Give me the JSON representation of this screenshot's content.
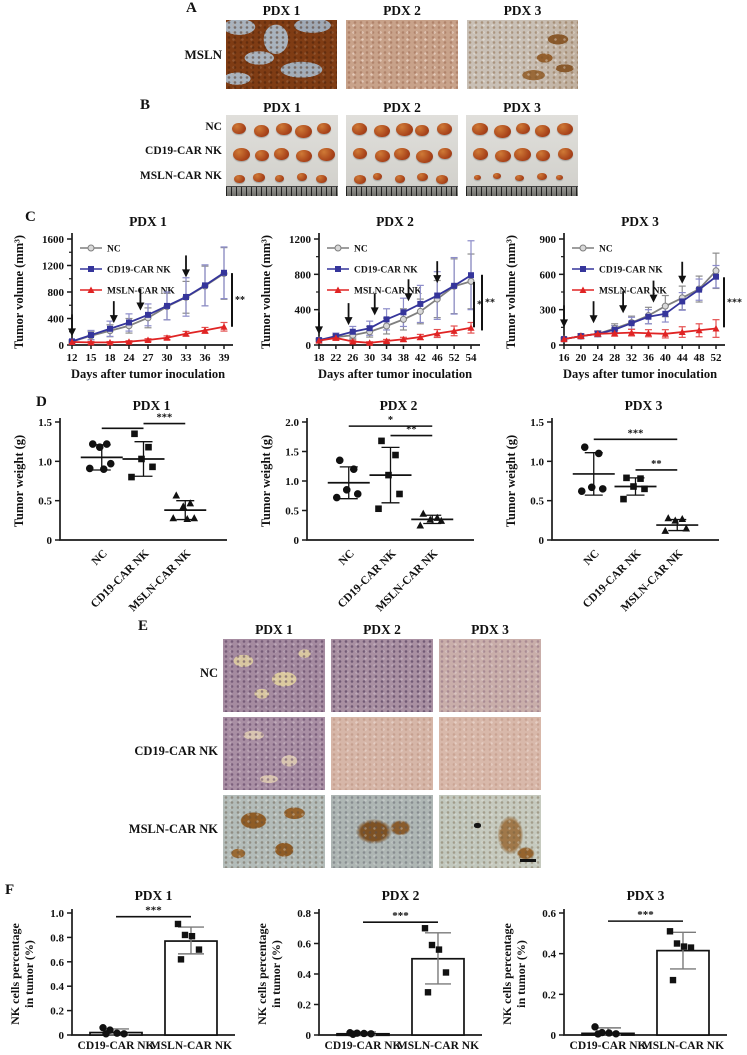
{
  "panels": {
    "A": {
      "label": "A",
      "columns": [
        "PDX 1",
        "PDX 2",
        "PDX 3"
      ],
      "row_label": "MSLN"
    },
    "B": {
      "label": "B",
      "columns": [
        "PDX 1",
        "PDX 2",
        "PDX 3"
      ],
      "row_labels": [
        "NC",
        "CD19-CAR NK",
        "MSLN-CAR NK"
      ]
    },
    "C": {
      "label": "C"
    },
    "D": {
      "label": "D"
    },
    "E": {
      "label": "E",
      "columns": [
        "PDX 1",
        "PDX 2",
        "PDX 3"
      ],
      "row_labels": [
        "NC",
        "CD19-CAR NK",
        "MSLN-CAR NK"
      ]
    },
    "F": {
      "label": "F"
    }
  },
  "colors": {
    "nc": "#7f7f7f",
    "cd19": "#35359b",
    "cd19_err": "#8c8cc9",
    "msln": "#e02424",
    "axis": "#1a1a1a"
  },
  "chart_data": [
    {
      "id": "C1",
      "panel": "C",
      "type": "line",
      "title": "PDX 1",
      "xlabel": "Days after tumor inoculation",
      "ylabel": "Tumor volume (mm³)",
      "x": [
        12,
        15,
        18,
        24,
        27,
        30,
        33,
        36,
        39
      ],
      "ylim": [
        0,
        1600
      ],
      "yticks": [
        "0",
        "400",
        "800",
        "1200",
        "1600"
      ],
      "legend_position": "top-left",
      "grid": false,
      "series": [
        {
          "name": "NC",
          "color": "#7f7f7f",
          "err_color": "#8c8c8c",
          "marker": "circle",
          "open": true,
          "values": [
            50,
            140,
            215,
            290,
            410,
            580,
            720,
            890,
            1080
          ],
          "err": [
            25,
            60,
            90,
            110,
            150,
            200,
            240,
            300,
            390
          ]
        },
        {
          "name": "CD19-CAR NK",
          "color": "#35359b",
          "err_color": "#8c8cc9",
          "marker": "square",
          "values": [
            55,
            150,
            245,
            340,
            455,
            590,
            725,
            900,
            1090
          ],
          "err": [
            25,
            70,
            115,
            130,
            165,
            210,
            290,
            310,
            390
          ]
        },
        {
          "name": "MSLN-CAR NK",
          "color": "#e02424",
          "err_color": "#e45050",
          "marker": "triangle",
          "values": [
            45,
            40,
            40,
            50,
            75,
            110,
            170,
            220,
            275
          ],
          "err": [
            12,
            12,
            12,
            15,
            20,
            28,
            35,
            45,
            65
          ]
        }
      ],
      "arrows": [
        {
          "xi": 0,
          "y": 130
        },
        {
          "xi": 2.2,
          "y": 330
        },
        {
          "xi": 3.6,
          "y": 520
        },
        {
          "xi": 6,
          "y": 1020
        }
      ],
      "sig": [
        {
          "dx": 8,
          "y1": 1085,
          "y2": 275,
          "label": "**"
        }
      ]
    },
    {
      "id": "C2",
      "panel": "C",
      "type": "line",
      "title": "PDX 2",
      "xlabel": "Days after tumor inoculation",
      "ylabel": "Tumor volume (mm³)",
      "x": [
        18,
        22,
        26,
        30,
        34,
        38,
        42,
        46,
        52,
        54
      ],
      "ylim": [
        0,
        1200
      ],
      "yticks": [
        "0",
        "400",
        "800",
        "1200"
      ],
      "legend_position": "top-left",
      "grid": false,
      "series": [
        {
          "name": "NC",
          "color": "#7f7f7f",
          "err_color": "#8c8c8c",
          "marker": "circle",
          "open": true,
          "values": [
            55,
            90,
            110,
            150,
            215,
            290,
            380,
            520,
            665,
            720
          ],
          "err": [
            20,
            30,
            40,
            60,
            90,
            120,
            140,
            210,
            310,
            310
          ]
        },
        {
          "name": "CD19-CAR NK",
          "color": "#35359b",
          "err_color": "#8c8cc9",
          "marker": "square",
          "values": [
            55,
            100,
            150,
            190,
            290,
            370,
            465,
            560,
            670,
            790
          ],
          "err": [
            20,
            35,
            60,
            80,
            120,
            160,
            210,
            270,
            320,
            390
          ]
        },
        {
          "name": "MSLN-CAR NK",
          "color": "#e02424",
          "err_color": "#e45050",
          "marker": "triangle",
          "values": [
            50,
            80,
            40,
            25,
            45,
            65,
            90,
            130,
            160,
            195
          ],
          "err": [
            15,
            25,
            15,
            12,
            18,
            22,
            30,
            45,
            55,
            60
          ]
        }
      ],
      "arrows": [
        {
          "xi": 0,
          "y": 120
        },
        {
          "xi": 1.75,
          "y": 225
        },
        {
          "xi": 3.3,
          "y": 335
        },
        {
          "xi": 5.3,
          "y": 495
        },
        {
          "xi": 7,
          "y": 700
        }
      ],
      "sig": [
        {
          "dx": 3,
          "y1": 715,
          "y2": 200,
          "label": "*"
        },
        {
          "dx": 11,
          "y1": 795,
          "y2": 165,
          "label": "**"
        }
      ]
    },
    {
      "id": "C3",
      "panel": "C",
      "type": "line",
      "title": "PDX 3",
      "xlabel": "Days after tumor inoculation",
      "ylabel": "Tumor volume (mm³)",
      "x": [
        16,
        20,
        24,
        28,
        32,
        36,
        40,
        44,
        48,
        52
      ],
      "ylim": [
        0,
        900
      ],
      "yticks": [
        "0",
        "300",
        "600",
        "900"
      ],
      "legend_position": "top-left",
      "grid": false,
      "series": [
        {
          "name": "NC",
          "color": "#7f7f7f",
          "err_color": "#8c8c8c",
          "marker": "circle",
          "open": true,
          "values": [
            50,
            75,
            95,
            140,
            190,
            250,
            330,
            400,
            475,
            630
          ],
          "err": [
            15,
            20,
            25,
            40,
            55,
            70,
            90,
            100,
            110,
            150
          ]
        },
        {
          "name": "CD19-CAR NK",
          "color": "#35359b",
          "err_color": "#8c8cc9",
          "marker": "square",
          "values": [
            50,
            75,
            95,
            130,
            185,
            240,
            265,
            370,
            470,
            580
          ],
          "err": [
            15,
            20,
            25,
            35,
            50,
            60,
            70,
            75,
            90,
            95
          ]
        },
        {
          "name": "MSLN-CAR NK",
          "color": "#e02424",
          "err_color": "#e45050",
          "marker": "triangle",
          "values": [
            50,
            75,
            95,
            100,
            105,
            100,
            95,
            110,
            125,
            140
          ],
          "err": [
            12,
            18,
            20,
            25,
            28,
            30,
            35,
            45,
            55,
            75
          ]
        }
      ],
      "arrows": [
        {
          "xi": 0,
          "y": 150
        },
        {
          "xi": 1.75,
          "y": 185
        },
        {
          "xi": 3.5,
          "y": 270
        },
        {
          "xi": 5.3,
          "y": 360
        },
        {
          "xi": 7,
          "y": 520
        }
      ],
      "sig": [
        {
          "dx": 8,
          "y1": 575,
          "y2": 150,
          "label": "***"
        }
      ]
    },
    {
      "id": "D1",
      "panel": "D",
      "type": "scatter",
      "title": "PDX 1",
      "ylabel": "Tumor weight (g)",
      "categories": [
        "NC",
        "CD19-CAR NK",
        "MSLN-CAR NK"
      ],
      "ylim": [
        0,
        1.5
      ],
      "yticks": [
        "0",
        "0.5",
        "1.0",
        "1.5"
      ],
      "groups": [
        {
          "name": "NC",
          "marker": "circle",
          "points": [
            1.22,
            1.22,
            1.18,
            0.97,
            0.91,
            0.9
          ],
          "mean": 1.05,
          "sd": 0.16
        },
        {
          "name": "CD19-CAR NK",
          "marker": "square",
          "points": [
            1.35,
            1.18,
            1.03,
            0.93,
            0.8
          ],
          "mean": 1.03,
          "sd": 0.22
        },
        {
          "name": "MSLN-CAR NK",
          "marker": "triangle",
          "points": [
            0.57,
            0.47,
            0.43,
            0.28,
            0.28,
            0.27
          ],
          "mean": 0.38,
          "sd": 0.12
        }
      ],
      "sig": [
        {
          "x1": 0,
          "x2": 1,
          "y": 1.42,
          "label": ""
        },
        {
          "x1": 1,
          "x2": 2,
          "y": 1.48,
          "label": "***"
        }
      ]
    },
    {
      "id": "D2",
      "panel": "D",
      "type": "scatter",
      "title": "PDX 2",
      "ylabel": "Tumor weight (g)",
      "categories": [
        "NC",
        "CD19-CAR NK",
        "MSLN-CAR NK"
      ],
      "ylim": [
        0,
        2
      ],
      "yticks": [
        "0",
        "0.5",
        "1.0",
        "1.5",
        "2.0"
      ],
      "groups": [
        {
          "name": "NC",
          "marker": "circle",
          "points": [
            1.35,
            1.2,
            0.85,
            0.78,
            0.72
          ],
          "mean": 0.97,
          "sd": 0.27
        },
        {
          "name": "CD19-CAR NK",
          "marker": "square",
          "points": [
            1.68,
            1.44,
            1.1,
            0.78,
            0.53
          ],
          "mean": 1.1,
          "sd": 0.47
        },
        {
          "name": "MSLN-CAR NK",
          "marker": "triangle",
          "points": [
            0.45,
            0.38,
            0.35,
            0.33,
            0.25
          ],
          "mean": 0.35,
          "sd": 0.07
        }
      ],
      "sig": [
        {
          "x1": 0,
          "x2": 2,
          "y": 1.93,
          "label": "*"
        },
        {
          "x1": 1,
          "x2": 2,
          "y": 1.77,
          "label": "**"
        }
      ]
    },
    {
      "id": "D3",
      "panel": "D",
      "type": "scatter",
      "title": "PDX 3",
      "ylabel": "Tumor weight (g)",
      "categories": [
        "NC",
        "CD19-CAR NK",
        "MSLN-CAR NK"
      ],
      "ylim": [
        0,
        1.5
      ],
      "yticks": [
        "0",
        "0.5",
        "1.0",
        "1.5"
      ],
      "groups": [
        {
          "name": "NC",
          "marker": "circle",
          "points": [
            1.18,
            1.1,
            0.67,
            0.65,
            0.62
          ],
          "mean": 0.84,
          "sd": 0.27
        },
        {
          "name": "CD19-CAR NK",
          "marker": "square",
          "points": [
            0.79,
            0.78,
            0.68,
            0.65,
            0.52
          ],
          "mean": 0.68,
          "sd": 0.11
        },
        {
          "name": "MSLN-CAR NK",
          "marker": "triangle",
          "points": [
            0.28,
            0.27,
            0.25,
            0.15,
            0.12
          ],
          "mean": 0.19,
          "sd": 0.07
        }
      ],
      "sig": [
        {
          "x1": 0,
          "x2": 2,
          "y": 1.28,
          "label": "***"
        },
        {
          "x1": 1,
          "x2": 2,
          "y": 0.89,
          "label": "**"
        }
      ]
    },
    {
      "id": "F1",
      "panel": "F",
      "type": "bar",
      "title": "PDX 1",
      "ylabel_lines": [
        "NK cells percentage",
        "in tumor (%)"
      ],
      "categories": [
        "CD19-CAR NK",
        "MSLN-CAR NK"
      ],
      "ylim": [
        0,
        1
      ],
      "yticks": [
        "0",
        "0.2",
        "0.4",
        "0.6",
        "0.8",
        "1.0"
      ],
      "bars": [
        {
          "name": "CD19-CAR NK",
          "value": 0.02,
          "whisker": [
            0,
            0.05
          ],
          "marker": "circle",
          "points": [
            0.06,
            0.04,
            0.015,
            0.01,
            0.01
          ]
        },
        {
          "name": "MSLN-CAR NK",
          "value": 0.77,
          "whisker": [
            0.665,
            0.885
          ],
          "marker": "square",
          "points": [
            0.91,
            0.82,
            0.81,
            0.7,
            0.62
          ]
        }
      ],
      "sig": {
        "y": 0.97,
        "label": "***"
      }
    },
    {
      "id": "F2",
      "panel": "F",
      "type": "bar",
      "title": "PDX 2",
      "ylabel_lines": [
        "NK cells percentage",
        "in tumor (%)"
      ],
      "categories": [
        "CD19-CAR NK",
        "MSLN-CAR NK"
      ],
      "ylim": [
        0,
        0.8
      ],
      "yticks": [
        "0",
        "0.2",
        "0.4",
        "0.6",
        "0.8"
      ],
      "bars": [
        {
          "name": "CD19-CAR NK",
          "value": 0.008,
          "whisker": [
            0,
            0.02
          ],
          "marker": "circle",
          "points": [
            0.015,
            0.012,
            0.01,
            0.008,
            0.005
          ]
        },
        {
          "name": "MSLN-CAR NK",
          "value": 0.5,
          "whisker": [
            0.335,
            0.67
          ],
          "marker": "square",
          "points": [
            0.7,
            0.59,
            0.56,
            0.41,
            0.28
          ]
        }
      ],
      "sig": {
        "y": 0.74,
        "label": "***"
      }
    },
    {
      "id": "F3",
      "panel": "F",
      "type": "bar",
      "title": "PDX 3",
      "ylabel_lines": [
        "NK cells percentage",
        "in tumor (%)"
      ],
      "categories": [
        "CD19-CAR NK",
        "MSLN-CAR NK"
      ],
      "ylim": [
        0,
        0.6
      ],
      "yticks": [
        "0",
        "0.2",
        "0.4",
        "0.6"
      ],
      "bars": [
        {
          "name": "CD19-CAR NK",
          "value": 0.008,
          "whisker": [
            0,
            0.035
          ],
          "marker": "circle",
          "points": [
            0.04,
            0.012,
            0.01,
            0.006,
            0.005
          ]
        },
        {
          "name": "MSLN-CAR NK",
          "value": 0.415,
          "whisker": [
            0.325,
            0.505
          ],
          "marker": "square",
          "points": [
            0.51,
            0.45,
            0.435,
            0.43,
            0.27
          ]
        }
      ],
      "sig": {
        "y": 0.56,
        "label": "***"
      }
    }
  ]
}
